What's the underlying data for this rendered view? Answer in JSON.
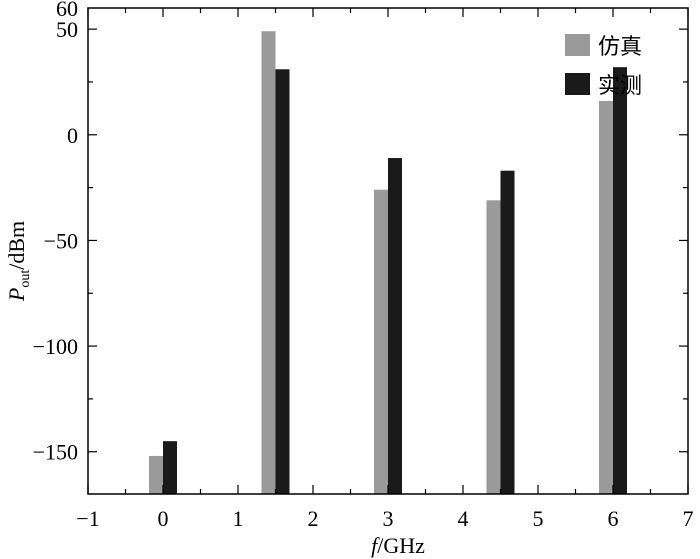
{
  "chart_data": {
    "type": "bar",
    "x_unit": "GHz",
    "series": [
      {
        "name": "仿真",
        "color": "#9a9a9a",
        "x": [
          0,
          1.5,
          3,
          4.5,
          6
        ],
        "values": [
          -152,
          49,
          -26,
          -31,
          16
        ]
      },
      {
        "name": "实测",
        "color": "#1a1a1a",
        "x": [
          0,
          1.5,
          3,
          4.5,
          6
        ],
        "values": [
          -145,
          31,
          -11,
          -17,
          32
        ]
      }
    ],
    "xlim": [
      -1,
      7
    ],
    "ylim": [
      -170,
      60
    ],
    "xticks": [
      -1,
      0,
      1,
      2,
      3,
      4,
      5,
      6,
      7
    ],
    "xtick_labels": [
      "−1",
      "0",
      "1",
      "2",
      "3",
      "4",
      "5",
      "6",
      "7"
    ],
    "yticks": [
      -150,
      -100,
      -50,
      0,
      50,
      60
    ],
    "ytick_labels": [
      "−150",
      "−100",
      "−50",
      "0",
      "50",
      "60"
    ],
    "xlabel": {
      "italic": "f",
      "rest": "/GHz"
    },
    "ylabel": {
      "italic": "P",
      "sub": "out",
      "rest": "/dBm"
    },
    "legend_position": "top-right",
    "grid": false
  }
}
